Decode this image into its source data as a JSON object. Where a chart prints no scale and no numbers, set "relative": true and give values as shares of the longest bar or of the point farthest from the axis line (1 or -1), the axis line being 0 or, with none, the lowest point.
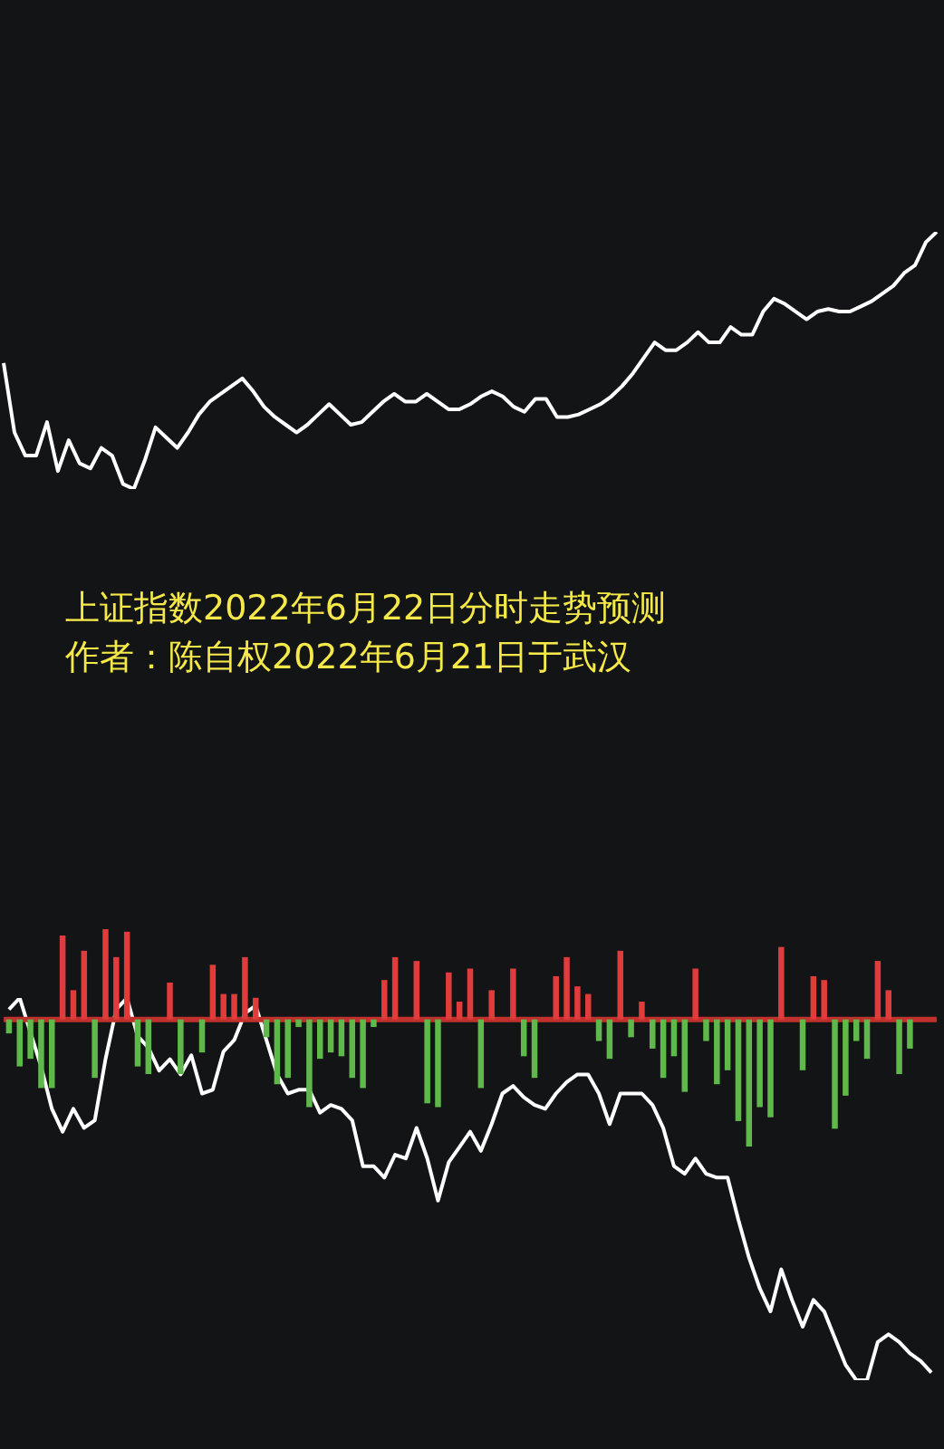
{
  "chart_data": [
    {
      "type": "line",
      "relative": true,
      "title": "上证指数2022年6月22日分时走势预测",
      "subtitle": "作者：陈自权2022年6月21日于武汉",
      "categories": [
        null,
        null,
        null,
        null,
        null,
        null,
        null,
        null,
        null,
        null,
        null,
        null,
        null,
        null,
        null,
        null,
        null,
        null,
        null,
        null,
        null,
        null,
        null,
        null,
        null,
        null,
        null,
        null,
        null,
        null,
        null,
        null,
        null,
        null,
        null,
        null,
        null,
        null,
        null,
        null,
        null,
        null,
        null,
        null,
        null,
        null,
        null,
        null,
        null,
        null,
        null,
        null,
        null,
        null,
        null,
        null,
        null,
        null,
        null,
        null,
        null,
        null,
        null,
        null,
        null,
        null,
        null,
        null,
        null,
        null,
        null,
        null,
        null,
        null,
        null,
        null,
        null,
        null,
        null,
        null,
        null,
        null,
        null,
        null,
        null,
        null,
        null
      ],
      "series": [
        {
          "color": "#ffffff",
          "values": [
            0.49,
            0.22,
            0.13,
            0.13,
            0.26,
            0.07,
            0.19,
            0.1,
            0.08,
            0.16,
            0.13,
            0.02,
            0,
            0.11,
            0.24,
            0.2,
            0.16,
            0.22,
            0.29,
            0.34,
            0.37,
            0.4,
            0.43,
            0.38,
            0.32,
            0.28,
            0.25,
            0.22,
            0.25,
            0.29,
            0.33,
            0.29,
            0.25,
            0.26,
            0.3,
            0.34,
            0.37,
            0.34,
            0.34,
            0.37,
            0.34,
            0.31,
            0.31,
            0.33,
            0.36,
            0.38,
            0.36,
            0.32,
            0.3,
            0.35,
            0.35,
            0.28,
            0.28,
            0.29,
            0.31,
            0.33,
            0.36,
            0.4,
            0.45,
            0.51,
            0.57,
            0.54,
            0.54,
            0.57,
            0.61,
            0.57,
            0.57,
            0.63,
            0.6,
            0.6,
            0.69,
            0.74,
            0.72,
            0.69,
            0.66,
            0.69,
            0.7,
            0.69,
            0.69,
            0.71,
            0.73,
            0.76,
            0.79,
            0.84,
            0.87,
            0.96,
            1
          ]
        }
      ]
    },
    {
      "type": "bar",
      "relative": true,
      "ref_lines": [
        {
          "axis": "y",
          "value": 0,
          "color": "#c0302c"
        }
      ],
      "categories": [
        null,
        null,
        null,
        null,
        null,
        null,
        null,
        null,
        null,
        null,
        null,
        null,
        null,
        null,
        null,
        null,
        null,
        null,
        null,
        null,
        null,
        null,
        null,
        null,
        null,
        null,
        null,
        null,
        null,
        null,
        null,
        null,
        null,
        null,
        null,
        null,
        null,
        null,
        null,
        null,
        null,
        null,
        null,
        null,
        null,
        null,
        null,
        null,
        null,
        null,
        null,
        null,
        null,
        null,
        null,
        null,
        null,
        null,
        null,
        null,
        null,
        null,
        null,
        null,
        null,
        null,
        null,
        null,
        null,
        null,
        null,
        null,
        null,
        null,
        null,
        null,
        null,
        null,
        null,
        null,
        null,
        null,
        null,
        null,
        null,
        null,
        null
      ],
      "values": [
        -0.11,
        -0.37,
        -0.31,
        -0.54,
        -0.54,
        0.66,
        0.23,
        0.54,
        -0.46,
        0.71,
        0.49,
        0.69,
        -0.37,
        -0.43,
        0,
        0.29,
        -0.43,
        0,
        -0.26,
        0.43,
        0.2,
        0.2,
        0.49,
        0.17,
        -0.14,
        -0.51,
        -0.46,
        -0.06,
        -0.69,
        -0.31,
        -0.26,
        -0.29,
        -0.46,
        -0.54,
        -0.06,
        0.31,
        0.49,
        0,
        0.46,
        -0.66,
        -0.69,
        0.37,
        0.14,
        0.4,
        -0.54,
        0.23,
        0,
        0.4,
        -0.29,
        -0.46,
        0,
        0.34,
        0.49,
        0.26,
        0.2,
        -0.17,
        -0.31,
        0.54,
        -0.14,
        0.14,
        -0.23,
        -0.46,
        -0.29,
        -0.57,
        0.4,
        -0.17,
        -0.51,
        -0.4,
        -0.8,
        -1,
        -0.69,
        -0.77,
        0.57,
        0,
        -0.4,
        0.34,
        0.31,
        -0.86,
        -0.6,
        -0.17,
        -0.31,
        0.46,
        0.23,
        -0.43,
        -0.23,
        0,
        0
      ],
      "colors": [
        "#5fb84a",
        "#5fb84a",
        "#5fb84a",
        "#5fb84a",
        "#5fb84a",
        "#e03c3c",
        "#e03c3c",
        "#e03c3c",
        "#5fb84a",
        "#e03c3c",
        "#e03c3c",
        "#e03c3c",
        "#5fb84a",
        "#5fb84a",
        "#e03c3c",
        "#e03c3c",
        "#5fb84a",
        "#e03c3c",
        "#5fb84a",
        "#e03c3c",
        "#e03c3c",
        "#e03c3c",
        "#e03c3c",
        "#e03c3c",
        "#5fb84a",
        "#5fb84a",
        "#5fb84a",
        "#5fb84a",
        "#5fb84a",
        "#5fb84a",
        "#5fb84a",
        "#5fb84a",
        "#5fb84a",
        "#5fb84a",
        "#5fb84a",
        "#e03c3c",
        "#e03c3c",
        "#e03c3c",
        "#e03c3c",
        "#5fb84a",
        "#5fb84a",
        "#e03c3c",
        "#e03c3c",
        "#e03c3c",
        "#5fb84a",
        "#e03c3c",
        "#e03c3c",
        "#e03c3c",
        "#5fb84a",
        "#5fb84a",
        "#e03c3c",
        "#e03c3c",
        "#e03c3c",
        "#e03c3c",
        "#e03c3c",
        "#5fb84a",
        "#5fb84a",
        "#e03c3c",
        "#5fb84a",
        "#e03c3c",
        "#5fb84a",
        "#5fb84a",
        "#5fb84a",
        "#5fb84a",
        "#e03c3c",
        "#5fb84a",
        "#5fb84a",
        "#5fb84a",
        "#5fb84a",
        "#5fb84a",
        "#5fb84a",
        "#5fb84a",
        "#e03c3c",
        "#e03c3c",
        "#5fb84a",
        "#e03c3c",
        "#e03c3c",
        "#5fb84a",
        "#5fb84a",
        "#5fb84a",
        "#5fb84a",
        "#e03c3c",
        "#e03c3c",
        "#5fb84a",
        "#5fb84a",
        "#e03c3c",
        "#e03c3c"
      ]
    },
    {
      "type": "line",
      "relative": true,
      "categories": [
        null,
        null,
        null,
        null,
        null,
        null,
        null,
        null,
        null,
        null,
        null,
        null,
        null,
        null,
        null,
        null,
        null,
        null,
        null,
        null,
        null,
        null,
        null,
        null,
        null,
        null,
        null,
        null,
        null,
        null,
        null,
        null,
        null,
        null,
        null,
        null,
        null,
        null,
        null,
        null,
        null,
        null,
        null,
        null,
        null,
        null,
        null,
        null,
        null,
        null,
        null,
        null,
        null,
        null,
        null,
        null,
        null,
        null,
        null,
        null,
        null,
        null,
        null,
        null,
        null,
        null,
        null,
        null,
        null,
        null,
        null,
        null,
        null,
        null,
        null,
        null,
        null,
        null,
        null,
        null,
        null,
        null,
        null,
        null,
        null,
        null,
        null
      ],
      "series": [
        {
          "color": "#ffffff",
          "values": [
            0.97,
            1,
            0.91,
            0.82,
            0.71,
            0.65,
            0.71,
            0.66,
            0.68,
            0.84,
            0.97,
            1,
            0.9,
            0.87,
            0.81,
            0.84,
            0.8,
            0.85,
            0.75,
            0.76,
            0.86,
            0.89,
            0.96,
            0.98,
            0.89,
            0.8,
            0.75,
            0.76,
            0.76,
            0.7,
            0.72,
            0.71,
            0.68,
            0.56,
            0.56,
            0.53,
            0.59,
            0.58,
            0.66,
            0.58,
            0.47,
            0.57,
            0.61,
            0.65,
            0.6,
            0.67,
            0.75,
            0.77,
            0.74,
            0.72,
            0.71,
            0.75,
            0.78,
            0.8,
            0.8,
            0.75,
            0.67,
            0.75,
            0.75,
            0.75,
            0.72,
            0.66,
            0.56,
            0.54,
            0.58,
            0.54,
            0.53,
            0.53,
            0.42,
            0.32,
            0.24,
            0.18,
            0.29,
            0.21,
            0.14,
            0.21,
            0.18,
            0.11,
            0.04,
            0,
            0,
            0.1,
            0.12,
            0.1,
            0.07,
            0.05,
            0.02
          ]
        }
      ]
    }
  ]
}
